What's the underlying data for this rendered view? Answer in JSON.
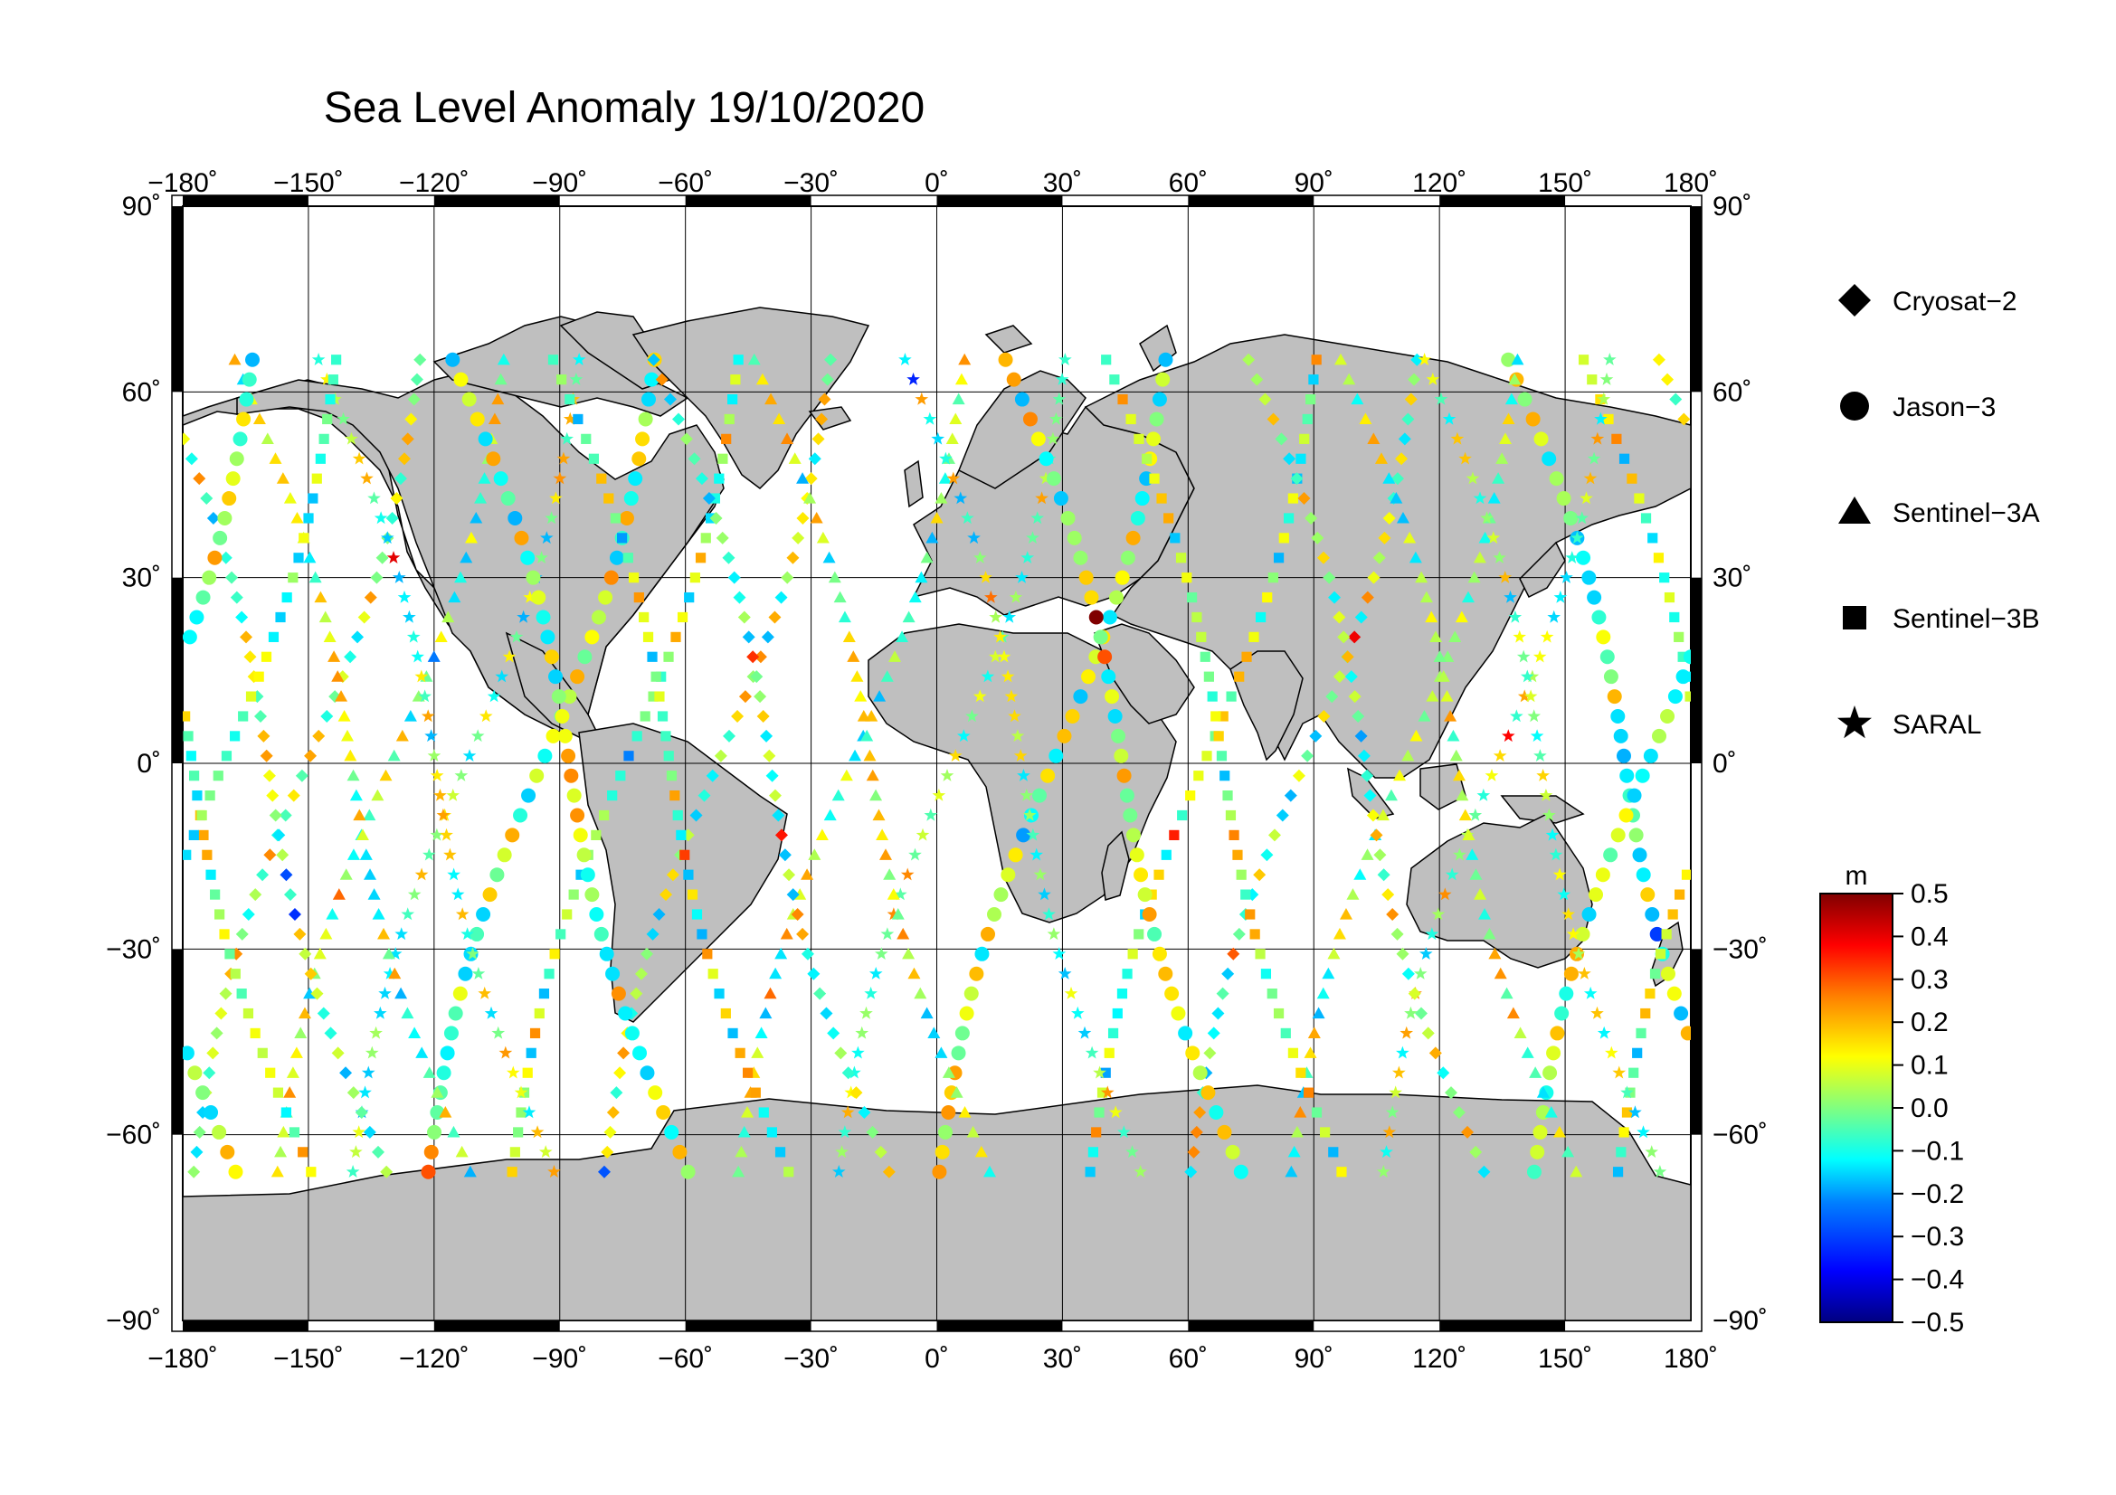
{
  "title": "Sea Level Anomaly 19/10/2020",
  "map": {
    "projection": "equirectangular",
    "lon_range": [
      -180,
      180
    ],
    "lat_range": [
      -90,
      90
    ],
    "lon_ticks": [
      "−180˚",
      "−150˚",
      "−120˚",
      "−90˚",
      "−60˚",
      "−30˚",
      "0˚",
      "30˚",
      "60˚",
      "90˚",
      "120˚",
      "150˚",
      "180˚"
    ],
    "lat_ticks": [
      "90˚",
      "60˚",
      "30˚",
      "0˚",
      "−30˚",
      "−60˚",
      "−90˚"
    ],
    "land_color": "#bfbfbf",
    "ocean_color": "#ffffff",
    "grid": true
  },
  "legend": {
    "items": [
      {
        "symbol": "diamond-icon",
        "label": "Cryosat−2"
      },
      {
        "symbol": "circle-icon",
        "label": "Jason−3"
      },
      {
        "symbol": "triangle-icon",
        "label": "Sentinel−3A"
      },
      {
        "symbol": "square-icon",
        "label": "Sentinel−3B"
      },
      {
        "symbol": "star-icon",
        "label": "SARAL"
      }
    ]
  },
  "colorbar": {
    "unit": "m",
    "range": [
      -0.5,
      0.5
    ],
    "ticks": [
      "0.5",
      "0.4",
      "0.3",
      "0.2",
      "0.1",
      "0.0",
      "−0.1",
      "−0.2",
      "−0.3",
      "−0.4",
      "−0.5"
    ],
    "colors": [
      "#000080",
      "#0000ff",
      "#0080ff",
      "#00ffff",
      "#80ff80",
      "#ffff00",
      "#ff8000",
      "#ff0000",
      "#800000"
    ]
  }
}
